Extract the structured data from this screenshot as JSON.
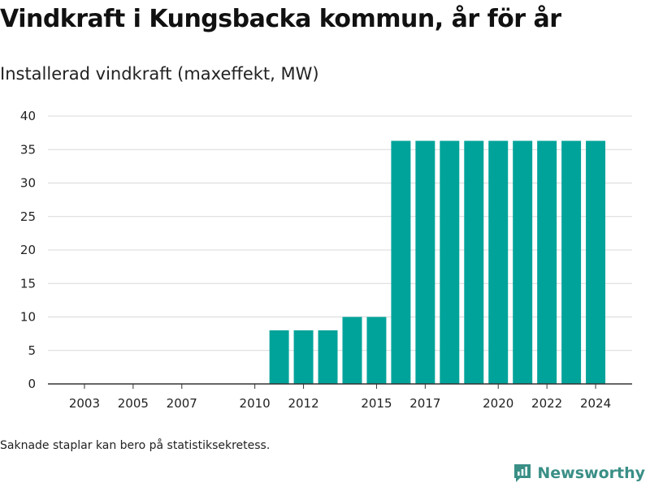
{
  "title": "Vindkraft i Kungsbacka kommun, år för år",
  "subtitle": "Installerad vindkraft (maxeffekt, MW)",
  "footnote": "Saknade staplar kan bero på statistiksekretess.",
  "brand": {
    "name": "Newsworthy",
    "icon": "newsworthy-logo-icon",
    "color": "#3a8f86"
  },
  "colors": {
    "bar": "#00a39a",
    "grid": "#d9d9d9",
    "axis": "#333333"
  },
  "chart_data": {
    "type": "bar",
    "x": [
      2011,
      2012,
      2013,
      2014,
      2015,
      2016,
      2017,
      2018,
      2019,
      2020,
      2021,
      2022,
      2023,
      2024
    ],
    "values": [
      8,
      8,
      8,
      10,
      10,
      36.3,
      36.3,
      36.3,
      36.3,
      36.3,
      36.3,
      36.3,
      36.3,
      36.3
    ],
    "xlim": [
      2001.5,
      2025.5
    ],
    "ylim": [
      0,
      40
    ],
    "yticks": [
      0,
      5,
      10,
      15,
      20,
      25,
      30,
      35,
      40
    ],
    "xticks": [
      2003,
      2005,
      2007,
      2010,
      2012,
      2015,
      2017,
      2020,
      2022,
      2024
    ],
    "title": "Vindkraft i Kungsbacka kommun, år för år",
    "subtitle": "Installerad vindkraft (maxeffekt, MW)",
    "xlabel": "",
    "ylabel": "",
    "grid": true,
    "legend": "none"
  }
}
